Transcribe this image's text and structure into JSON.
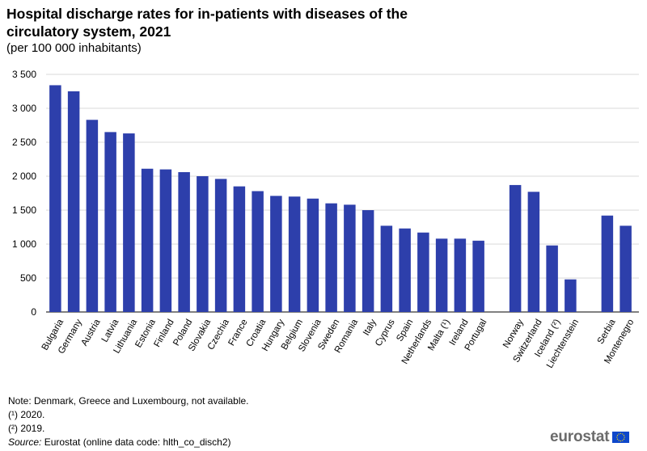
{
  "header": {
    "title_line1": "Hospital discharge rates for in-patients with diseases of the",
    "title_line2": "circulatory system, 2021",
    "subtitle": "(per 100 000 inhabitants)"
  },
  "chart_data": {
    "type": "bar",
    "title": "Hospital discharge rates for in-patients with diseases of the circulatory system, 2021",
    "subtitle": "(per 100 000 inhabitants)",
    "xlabel": "",
    "ylabel": "",
    "ylim": [
      0,
      3500
    ],
    "yticks": [
      0,
      500,
      1000,
      1500,
      2000,
      2500,
      3000,
      3500
    ],
    "ytick_labels": [
      "0",
      "500",
      "1 000",
      "1 500",
      "2 000",
      "2 500",
      "3 000",
      "3 500"
    ],
    "grid": true,
    "bar_color": "#2d3fab",
    "groups": [
      {
        "categories": [
          "Bulgaria",
          "Germany",
          "Austria",
          "Latvia",
          "Lithuania",
          "Estonia",
          "Finland",
          "Poland",
          "Slovakia",
          "Czechia",
          "France",
          "Croatia",
          "Hungary",
          "Belgium",
          "Slovenia",
          "Sweden",
          "Romania",
          "Italy",
          "Cyprus",
          "Spain",
          "Netherlands",
          "Malta (¹)",
          "Ireland",
          "Portugal"
        ],
        "values": [
          3340,
          3250,
          2830,
          2650,
          2630,
          2110,
          2100,
          2060,
          2000,
          1960,
          1850,
          1780,
          1710,
          1700,
          1670,
          1600,
          1580,
          1500,
          1270,
          1230,
          1170,
          1080,
          1080,
          1050
        ]
      },
      {
        "categories": [
          "Norway",
          "Switzerland",
          "Iceland (²)",
          "Liechtenstein"
        ],
        "values": [
          1870,
          1770,
          980,
          480
        ]
      },
      {
        "categories": [
          "Serbia",
          "Montenegro"
        ],
        "values": [
          1420,
          1270
        ]
      }
    ]
  },
  "notes": {
    "note": "Note: Denmark, Greece and Luxembourg, not available.",
    "footnote1": "(¹) 2020.",
    "footnote2": "(²) 2019.",
    "source_label": "Source:",
    "source_text": " Eurostat (online data code: hlth_co_disch2)"
  },
  "logo": {
    "text": "eurostat",
    "flag_icon": "eu-flag-icon",
    "flag_color": "#0e47cb",
    "star_color": "#ffdd00"
  }
}
